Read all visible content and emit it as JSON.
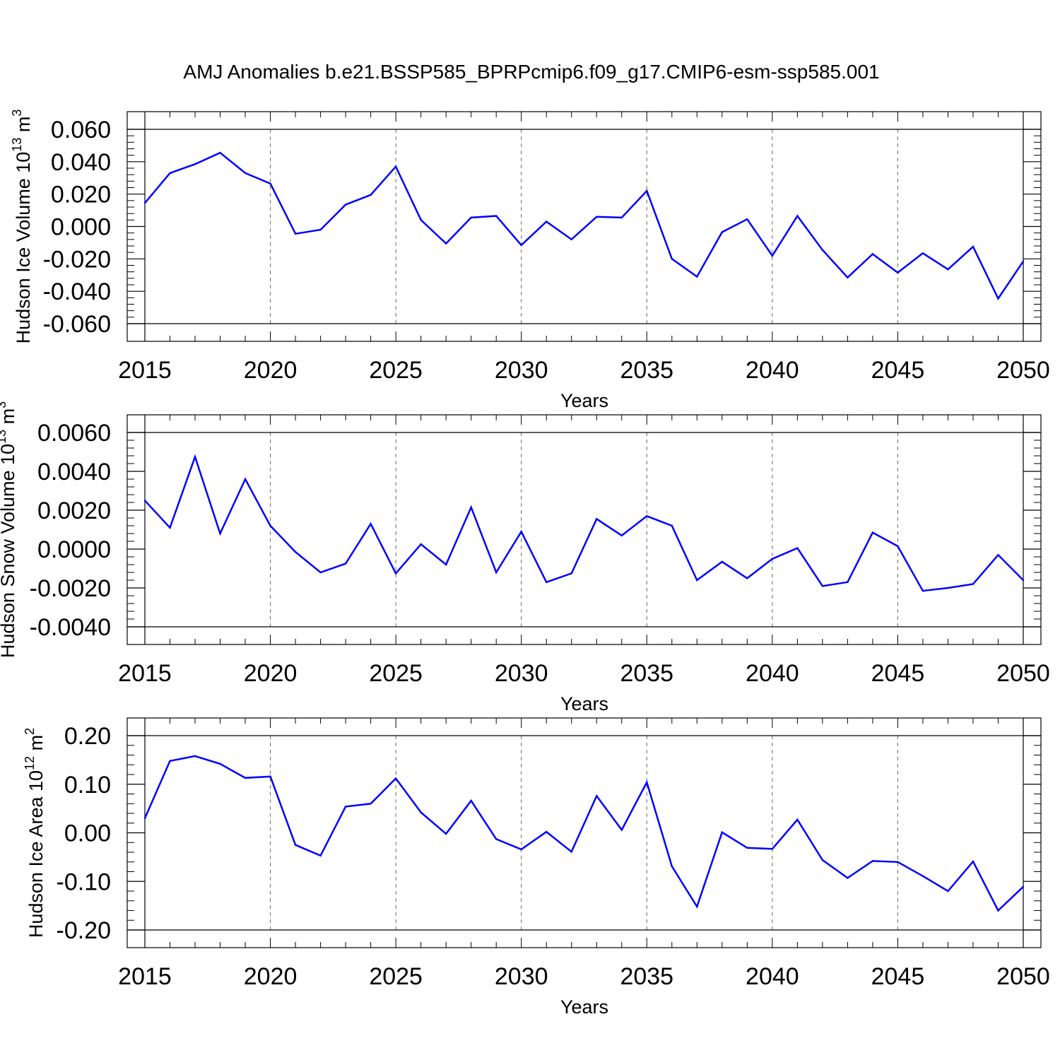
{
  "title": "AMJ Anomalies b.e21.BSSP585_BPRPcmip6.f09_g17.CMIP6-esm-ssp585.001",
  "colors": {
    "line": "#0000ff",
    "axes": "#000000",
    "grid": "#666666",
    "background": "#ffffff"
  },
  "chart_data": [
    {
      "type": "line",
      "ylabel": {
        "text": "Hudson Ice Volume 10",
        "exp": "13",
        "unit": " m",
        "unit_exp": "3"
      },
      "xlabel": "Years",
      "xlim": [
        2015,
        2050
      ],
      "ylim": [
        -0.06,
        0.06
      ],
      "x_ticks": [
        2015,
        2020,
        2025,
        2030,
        2035,
        2040,
        2045,
        2050
      ],
      "x_tick_labels": [
        "2015",
        "2020",
        "2025",
        "2030",
        "2035",
        "2040",
        "2045",
        "2050"
      ],
      "y_ticks": [
        -0.06,
        -0.04,
        -0.02,
        0.0,
        0.02,
        0.04,
        0.06
      ],
      "y_tick_labels": [
        "-0.060",
        "-0.040",
        "-0.020",
        "0.000",
        "0.020",
        "0.040",
        "0.060"
      ],
      "grid": "dashed vertical at major x ticks",
      "x": [
        2015,
        2016,
        2017,
        2018,
        2019,
        2020,
        2021,
        2022,
        2023,
        2024,
        2025,
        2026,
        2027,
        2028,
        2029,
        2030,
        2031,
        2032,
        2033,
        2034,
        2035,
        2036,
        2037,
        2038,
        2039,
        2040,
        2041,
        2042,
        2043,
        2044,
        2045,
        2046,
        2047,
        2048,
        2049,
        2050
      ],
      "values": [
        0.0145,
        0.033,
        0.0385,
        0.0455,
        0.033,
        0.0265,
        -0.0045,
        -0.002,
        0.0135,
        0.0195,
        0.037,
        0.004,
        -0.0105,
        0.0055,
        0.0065,
        -0.0115,
        0.003,
        -0.008,
        0.006,
        0.0055,
        0.022,
        -0.02,
        -0.031,
        -0.0035,
        0.0045,
        -0.018,
        0.0065,
        -0.0145,
        -0.0315,
        -0.017,
        -0.0285,
        -0.0165,
        -0.0265,
        -0.0125,
        -0.0445,
        -0.0215
      ]
    },
    {
      "type": "line",
      "ylabel": {
        "text": "Hudson Snow Volume 10",
        "exp": "13",
        "unit": " m",
        "unit_exp": "3"
      },
      "xlabel": "Years",
      "xlim": [
        2015,
        2050
      ],
      "ylim": [
        -0.004,
        0.006
      ],
      "x_ticks": [
        2015,
        2020,
        2025,
        2030,
        2035,
        2040,
        2045,
        2050
      ],
      "x_tick_labels": [
        "2015",
        "2020",
        "2025",
        "2030",
        "2035",
        "2040",
        "2045",
        "2050"
      ],
      "y_ticks": [
        -0.004,
        -0.002,
        0.0,
        0.002,
        0.004,
        0.006
      ],
      "y_tick_labels": [
        "-0.0040",
        "-0.0020",
        "0.0000",
        "0.0020",
        "0.0040",
        "0.0060"
      ],
      "grid": "dashed vertical at major x ticks",
      "x": [
        2015,
        2016,
        2017,
        2018,
        2019,
        2020,
        2021,
        2022,
        2023,
        2024,
        2025,
        2026,
        2027,
        2028,
        2029,
        2030,
        2031,
        2032,
        2033,
        2034,
        2035,
        2036,
        2037,
        2038,
        2039,
        2040,
        2041,
        2042,
        2043,
        2044,
        2045,
        2046,
        2047,
        2048,
        2049,
        2050
      ],
      "values": [
        0.0025,
        0.0011,
        0.00475,
        0.0008,
        0.0036,
        0.0012,
        -0.00015,
        -0.0012,
        -0.00075,
        0.0013,
        -0.00125,
        0.00025,
        -0.0008,
        0.00215,
        -0.0012,
        0.0009,
        -0.0017,
        -0.00125,
        0.00155,
        0.0007,
        0.0017,
        0.0012,
        -0.0016,
        -0.00065,
        -0.0015,
        -0.0005,
        5e-05,
        -0.0019,
        -0.0017,
        0.00085,
        0.00015,
        -0.00215,
        -0.002,
        -0.0018,
        -0.0003,
        -0.0016
      ]
    },
    {
      "type": "line",
      "ylabel": {
        "text": "Hudson Ice Area 10",
        "exp": "12",
        "unit": " m",
        "unit_exp": "2"
      },
      "xlabel": "Years",
      "xlim": [
        2015,
        2050
      ],
      "ylim": [
        -0.2,
        0.2
      ],
      "x_ticks": [
        2015,
        2020,
        2025,
        2030,
        2035,
        2040,
        2045,
        2050
      ],
      "x_tick_labels": [
        "2015",
        "2020",
        "2025",
        "2030",
        "2035",
        "2040",
        "2045",
        "2050"
      ],
      "y_ticks": [
        -0.2,
        -0.1,
        0.0,
        0.1,
        0.2
      ],
      "y_tick_labels": [
        "-0.20",
        "-0.10",
        "0.00",
        "0.10",
        "0.20"
      ],
      "grid": "dashed vertical at major x ticks",
      "x": [
        2015,
        2016,
        2017,
        2018,
        2019,
        2020,
        2021,
        2022,
        2023,
        2024,
        2025,
        2026,
        2027,
        2028,
        2029,
        2030,
        2031,
        2032,
        2033,
        2034,
        2035,
        2036,
        2037,
        2038,
        2039,
        2040,
        2041,
        2042,
        2043,
        2044,
        2045,
        2046,
        2047,
        2048,
        2049,
        2050
      ],
      "values": [
        0.03,
        0.148,
        0.158,
        0.142,
        0.113,
        0.116,
        -0.025,
        -0.047,
        0.054,
        0.06,
        0.112,
        0.042,
        -0.002,
        0.066,
        -0.013,
        -0.034,
        0.002,
        -0.039,
        0.076,
        0.006,
        0.104,
        -0.069,
        -0.152,
        0.001,
        -0.031,
        -0.033,
        0.027,
        -0.056,
        -0.093,
        -0.058,
        -0.06,
        -0.089,
        -0.12,
        -0.059,
        -0.16,
        -0.111
      ]
    }
  ]
}
